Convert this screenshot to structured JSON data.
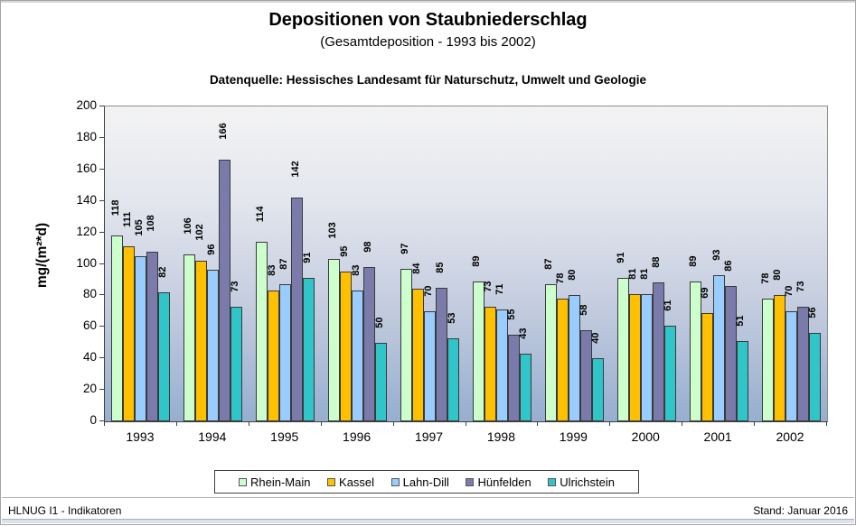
{
  "chart_data": {
    "type": "bar",
    "title": "Depositionen von Staubniederschlag",
    "subtitle": "(Gesamtdeposition - 1993 bis 2002)",
    "source": "Datenquelle: Hessisches Landesamt für Naturschutz, Umwelt und Geologie",
    "xlabel": "",
    "ylabel": "mg/(m²*d)",
    "ylim": [
      0,
      200
    ],
    "ytick_step": 20,
    "grid": false,
    "legend_position": "bottom",
    "categories": [
      "1993",
      "1994",
      "1995",
      "1996",
      "1997",
      "1998",
      "1999",
      "2000",
      "2001",
      "2002"
    ],
    "series": [
      {
        "name": "Rhein-Main",
        "color": "#ccffcc",
        "values": [
          118,
          106,
          114,
          103,
          97,
          89,
          87,
          91,
          89,
          78
        ]
      },
      {
        "name": "Kassel",
        "color": "#ffc000",
        "values": [
          111,
          102,
          83,
          95,
          84,
          73,
          78,
          81,
          69,
          80
        ]
      },
      {
        "name": "Lahn-Dill",
        "color": "#99ccff",
        "values": [
          105,
          96,
          87,
          83,
          70,
          71,
          80,
          81,
          93,
          70
        ]
      },
      {
        "name": "Hünfelden",
        "color": "#7b7bab",
        "values": [
          108,
          166,
          142,
          98,
          85,
          55,
          58,
          88,
          86,
          73
        ]
      },
      {
        "name": "Ulrichstein",
        "color": "#30c5c9",
        "values": [
          82,
          73,
          91,
          50,
          53,
          43,
          40,
          61,
          51,
          56
        ]
      }
    ]
  },
  "footer": {
    "left": "HLNUG I1 - Indikatoren",
    "right": "Stand: Januar 2016"
  }
}
